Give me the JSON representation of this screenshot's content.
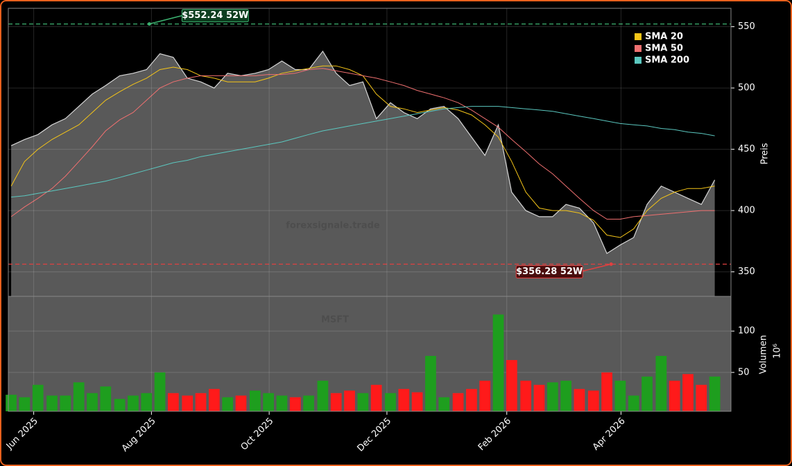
{
  "chart_data": [
    {
      "type": "line",
      "x": [
        2025.382,
        2025.401,
        2025.42,
        2025.44,
        2025.459,
        2025.478,
        2025.497,
        2025.516,
        2025.536,
        2025.555,
        2025.574,
        2025.593,
        2025.612,
        2025.632,
        2025.651,
        2025.67,
        2025.689,
        2025.708,
        2025.728,
        2025.747,
        2025.766,
        2025.785,
        2025.804,
        2025.824,
        2025.843,
        2025.862,
        2025.881,
        2025.9,
        2025.92,
        2025.939,
        2025.958,
        2025.977,
        2025.996,
        2026.016,
        2026.035,
        2026.054,
        2026.073,
        2026.092,
        2026.112,
        2026.131,
        2026.15,
        2026.169,
        2026.188,
        2026.208,
        2026.227,
        2026.246,
        2026.265,
        2026.284,
        2026.304,
        2026.323,
        2026.342,
        2026.361,
        2026.38
      ],
      "values": [
        453,
        458,
        462,
        470,
        475,
        485,
        495,
        502,
        510,
        512,
        515,
        528,
        525,
        508,
        505,
        500,
        512,
        510,
        512,
        515,
        522,
        515,
        515,
        530,
        512,
        502,
        505,
        475,
        488,
        480,
        475,
        483,
        485,
        475,
        460,
        445,
        470,
        415,
        400,
        395,
        395,
        405,
        402,
        390,
        365,
        372,
        378,
        405,
        420,
        415,
        410,
        405,
        425
      ],
      "color": "#ffffff",
      "area_color": "#595959",
      "series": [
        {
          "name": "SMA 20",
          "color": "#f5c518",
          "values": [
            420,
            440,
            450,
            458,
            464,
            470,
            480,
            490,
            497,
            503,
            508,
            515,
            517,
            515,
            510,
            508,
            505,
            505,
            505,
            508,
            512,
            514,
            516,
            518,
            518,
            515,
            510,
            495,
            485,
            483,
            480,
            482,
            484,
            482,
            478,
            470,
            460,
            440,
            415,
            402,
            400,
            400,
            398,
            392,
            380,
            378,
            385,
            400,
            410,
            415,
            418,
            418,
            420
          ]
        },
        {
          "name": "SMA 50",
          "color": "#f07070",
          "values": [
            395,
            403,
            410,
            418,
            428,
            440,
            452,
            465,
            474,
            480,
            490,
            500,
            505,
            508,
            510,
            510,
            510,
            510,
            510,
            511,
            511,
            512,
            515,
            516,
            514,
            512,
            510,
            508,
            505,
            502,
            498,
            495,
            492,
            488,
            482,
            475,
            468,
            458,
            448,
            438,
            430,
            420,
            410,
            400,
            393,
            393,
            395,
            396,
            397,
            398,
            399,
            400,
            400
          ]
        },
        {
          "name": "SMA 200",
          "color": "#5bc8c0",
          "values": [
            411,
            412,
            414,
            416,
            418,
            420,
            422,
            424,
            427,
            430,
            433,
            436,
            439,
            441,
            444,
            446,
            448,
            450,
            452,
            454,
            456,
            459,
            462,
            465,
            467,
            469,
            471,
            473,
            475,
            477,
            479,
            481,
            483,
            484,
            485,
            485,
            485,
            484,
            483,
            482,
            481,
            479,
            477,
            475,
            473,
            471,
            470,
            469,
            467,
            466,
            464,
            463,
            461
          ]
        }
      ],
      "xlim": [
        2025.378,
        2026.403
      ],
      "ylim": [
        330,
        565
      ],
      "yticks": [
        350,
        400,
        450,
        500,
        550
      ],
      "ylabel": "Preis",
      "grid": true,
      "legend": "upper right",
      "watermark": "forexsignale.trade",
      "annotations": [
        {
          "label": "$552.24 52W",
          "value": 552.24,
          "x": 2025.578,
          "color": "#3cb371"
        },
        {
          "label": "$356.28 52W",
          "value": 356.28,
          "x": 2026.233,
          "color": "#e04040"
        }
      ]
    },
    {
      "type": "bar",
      "x": [
        2025.382,
        2025.401,
        2025.42,
        2025.44,
        2025.459,
        2025.478,
        2025.497,
        2025.516,
        2025.536,
        2025.555,
        2025.574,
        2025.593,
        2025.612,
        2025.632,
        2025.651,
        2025.67,
        2025.689,
        2025.708,
        2025.728,
        2025.747,
        2025.766,
        2025.785,
        2025.804,
        2025.824,
        2025.843,
        2025.862,
        2025.881,
        2025.9,
        2025.92,
        2025.939,
        2025.958,
        2025.977,
        2025.996,
        2026.016,
        2026.035,
        2026.054,
        2026.073,
        2026.092,
        2026.112,
        2026.131,
        2026.15,
        2026.169,
        2026.188,
        2026.208,
        2026.227,
        2026.246,
        2026.265,
        2026.284,
        2026.304,
        2026.323,
        2026.342,
        2026.361,
        2026.38
      ],
      "values": [
        23,
        20,
        35,
        22,
        22,
        38,
        25,
        33,
        18,
        22,
        25,
        50,
        25,
        22,
        25,
        30,
        20,
        22,
        28,
        25,
        22,
        20,
        22,
        40,
        25,
        28,
        25,
        35,
        25,
        30,
        26,
        70,
        20,
        25,
        30,
        40,
        120,
        65,
        40,
        35,
        38,
        40,
        30,
        28,
        50,
        40,
        22,
        45,
        70,
        40,
        48,
        35,
        45
      ],
      "up_color": "#1e9e1e",
      "down_color": "#ff1a1a",
      "area_color": "#595959",
      "xlim": [
        2025.378,
        2026.403
      ],
      "ylim": [
        3,
        142
      ],
      "yticks": [
        50,
        100
      ],
      "xticks": [
        {
          "value": 2025.414,
          "label": "Jun 2025"
        },
        {
          "value": 2025.581,
          "label": "Aug 2025"
        },
        {
          "value": 2025.748,
          "label": "Oct 2025"
        },
        {
          "value": 2025.915,
          "label": "Dec 2025"
        },
        {
          "value": 2026.085,
          "label": "Feb 2026"
        },
        {
          "value": 2026.247,
          "label": "Apr 2026"
        }
      ],
      "ylabel": "Volumen",
      "ylabel_unit": "10⁶",
      "grid": true,
      "watermark": "MSFT"
    }
  ]
}
